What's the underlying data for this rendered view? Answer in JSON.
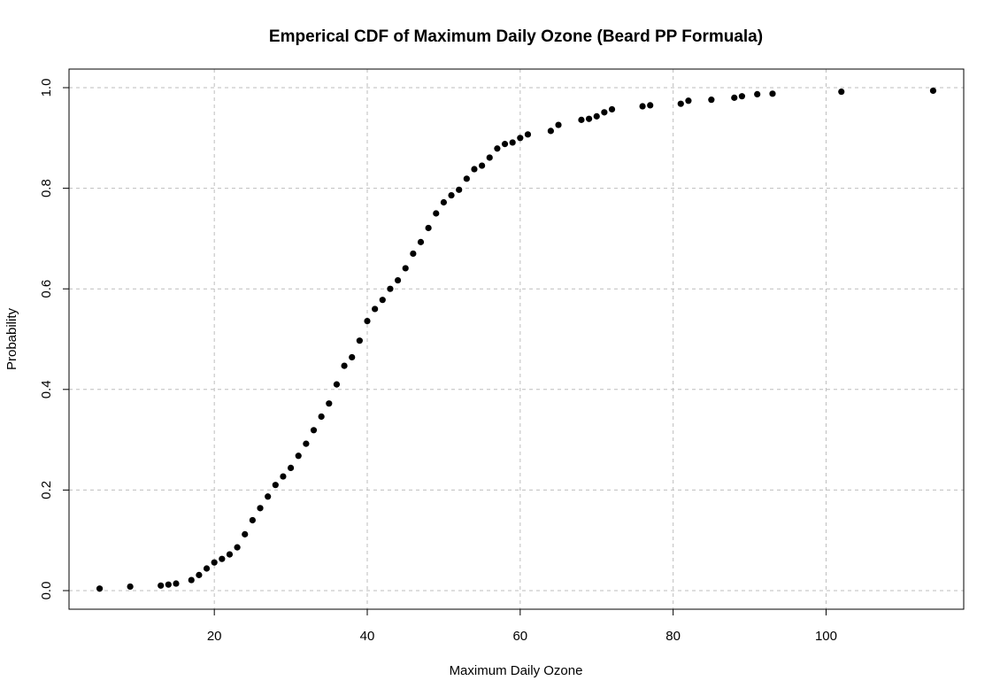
{
  "chart_data": {
    "type": "scatter",
    "title": "Emperical CDF of Maximum Daily Ozone (Beard PP Formuala)",
    "xlabel": "Maximum Daily Ozone",
    "ylabel": "Probability",
    "xlim": [
      1,
      118
    ],
    "ylim": [
      -0.037,
      1.037
    ],
    "xticks": [
      20,
      40,
      60,
      80,
      100
    ],
    "xtick_labels": [
      "20",
      "40",
      "60",
      "80",
      "100"
    ],
    "yticks": [
      0.0,
      0.2,
      0.4,
      0.6,
      0.8,
      1.0
    ],
    "ytick_labels": [
      "0.0",
      "0.2",
      "0.4",
      "0.6",
      "0.8",
      "1.0"
    ],
    "grid": true,
    "grid_style": "dashed",
    "point_color": "#000000",
    "grid_color": "#bebebe",
    "series": [
      {
        "x": [
          5,
          9,
          13,
          14,
          15,
          17,
          18,
          19,
          20,
          21,
          22,
          23,
          24,
          25,
          26,
          27,
          28,
          29,
          30,
          31,
          32,
          33,
          34,
          35,
          36,
          37,
          38,
          39,
          40,
          41,
          42,
          43,
          44,
          45,
          46,
          47,
          48,
          49,
          50,
          51,
          52,
          53,
          54,
          55,
          56,
          57,
          58,
          59,
          60,
          61,
          64,
          65,
          68,
          69,
          70,
          71,
          72,
          76,
          77,
          81,
          82,
          85,
          88,
          89,
          91,
          93,
          102,
          114
        ],
        "y": [
          0.004,
          0.008,
          0.01,
          0.012,
          0.014,
          0.021,
          0.031,
          0.044,
          0.056,
          0.063,
          0.072,
          0.086,
          0.112,
          0.14,
          0.164,
          0.187,
          0.21,
          0.227,
          0.244,
          0.268,
          0.292,
          0.319,
          0.346,
          0.372,
          0.41,
          0.447,
          0.464,
          0.497,
          0.536,
          0.56,
          0.578,
          0.6,
          0.617,
          0.641,
          0.67,
          0.693,
          0.721,
          0.75,
          0.772,
          0.786,
          0.797,
          0.819,
          0.838,
          0.845,
          0.861,
          0.879,
          0.888,
          0.891,
          0.9,
          0.907,
          0.914,
          0.926,
          0.936,
          0.938,
          0.943,
          0.951,
          0.957,
          0.963,
          0.965,
          0.968,
          0.974,
          0.976,
          0.98,
          0.983,
          0.987,
          0.988,
          0.992,
          0.994
        ]
      }
    ]
  }
}
